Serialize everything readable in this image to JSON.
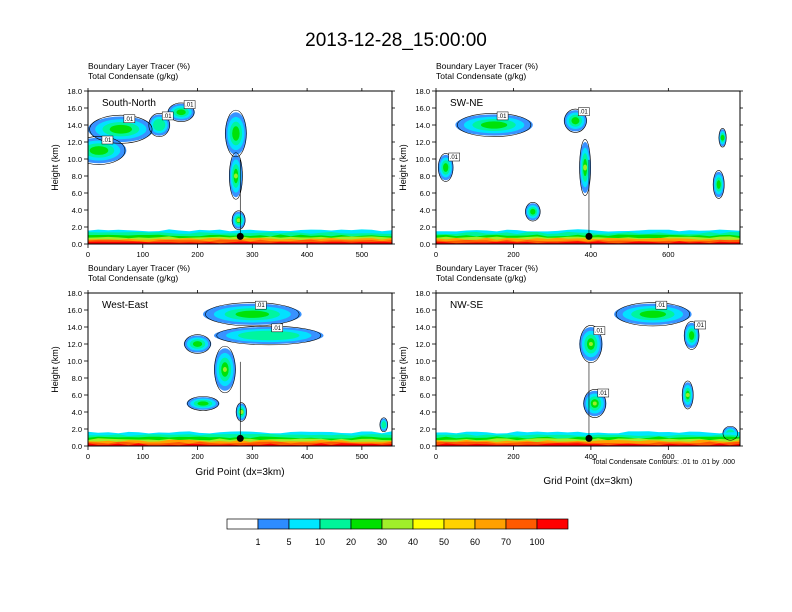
{
  "title": "2013-12-28_15:00:00",
  "colors": {
    "palette": [
      "#ffffff",
      "#2d8cff",
      "#00e6ff",
      "#00f59a",
      "#00e000",
      "#a0ee2a",
      "#ffff00",
      "#ffd200",
      "#ffa000",
      "#ff5a00",
      "#ff0000"
    ],
    "contour": "#000000",
    "frame": "#000000"
  },
  "footnote": "Total Condensate Contours: .01 to .01 by .000",
  "chart_data": [
    {
      "type": "heatmap",
      "panel_label": "South-North",
      "title_lines": [
        "Boundary Layer Tracer   (%)",
        "Total Condensate   (g/kg)"
      ],
      "ylabel": "Height (km)",
      "xlabel": "",
      "xlim": [
        0,
        555
      ],
      "ylim": [
        0,
        18
      ],
      "xticks": [
        0,
        100,
        200,
        300,
        400,
        500
      ],
      "yticks": [
        "0.0",
        "2.0",
        "4.0",
        "6.0",
        "8.0",
        "10.0",
        "12.0",
        "14.0",
        "16.0",
        "18.0"
      ],
      "contour_labels": [
        ".01",
        ".01",
        ".01",
        ".01"
      ],
      "blobs": [
        [
          20,
          11,
          100,
          3,
          3
        ],
        [
          60,
          13.5,
          120,
          3,
          3
        ],
        [
          130,
          14,
          40,
          2.5,
          2
        ],
        [
          170,
          15.5,
          50,
          2,
          3
        ],
        [
          270,
          13,
          40,
          5,
          3
        ],
        [
          270,
          8,
          25,
          5,
          4
        ],
        [
          275,
          2.8,
          25,
          2,
          4
        ]
      ],
      "station": [
        278,
        0.9
      ]
    },
    {
      "type": "heatmap",
      "panel_label": "SW-NE",
      "title_lines": [
        "Boundary Layer Tracer   (%)",
        "Total Condensate   (g/kg)"
      ],
      "ylabel": "Height (km)",
      "xlabel": "",
      "xlim": [
        0,
        785
      ],
      "ylim": [
        0,
        18
      ],
      "xticks": [
        0,
        200,
        400,
        600
      ],
      "yticks": [
        "0.0",
        "2.0",
        "4.0",
        "6.0",
        "8.0",
        "10.0",
        "12.0",
        "14.0",
        "16.0",
        "18.0"
      ],
      "contour_labels": [
        ".01",
        ".01",
        ".01"
      ],
      "blobs": [
        [
          25,
          9,
          40,
          3,
          3
        ],
        [
          150,
          14,
          200,
          2.5,
          3
        ],
        [
          360,
          14.5,
          60,
          2.5,
          3
        ],
        [
          385,
          9,
          30,
          6,
          4
        ],
        [
          250,
          3.8,
          40,
          2,
          3
        ],
        [
          730,
          7,
          30,
          3,
          3
        ],
        [
          740,
          12.5,
          20,
          2,
          3
        ]
      ],
      "station": [
        395,
        0.9
      ]
    },
    {
      "type": "heatmap",
      "panel_label": "West-East",
      "title_lines": [
        "Boundary Layer Tracer   (%)",
        "Total Condensate   (g/kg)"
      ],
      "ylabel": "Height (km)",
      "xlabel": "Grid Point (dx=3km)",
      "xlim": [
        0,
        555
      ],
      "ylim": [
        0,
        18
      ],
      "xticks": [
        0,
        100,
        200,
        300,
        400,
        500
      ],
      "yticks": [
        "0.0",
        "2.0",
        "4.0",
        "6.0",
        "8.0",
        "10.0",
        "12.0",
        "14.0",
        "16.0",
        "18.0"
      ],
      "contour_labels": [
        ".01",
        ".01"
      ],
      "blobs": [
        [
          300,
          15.5,
          180,
          2.5,
          3
        ],
        [
          330,
          13,
          200,
          2,
          2
        ],
        [
          250,
          9,
          40,
          5,
          4
        ],
        [
          280,
          4,
          20,
          2,
          4
        ],
        [
          210,
          5,
          60,
          1.5,
          3
        ],
        [
          200,
          12,
          50,
          2,
          3
        ],
        [
          540,
          2.5,
          15,
          1.5,
          2
        ]
      ],
      "station": [
        278,
        0.9
      ]
    },
    {
      "type": "heatmap",
      "panel_label": "NW-SE",
      "title_lines": [
        "Boundary Layer Tracer   (%)",
        "Total Condensate   (g/kg)"
      ],
      "ylabel": "Height (km)",
      "xlabel": "Grid Point (dx=3km)",
      "xlim": [
        0,
        785
      ],
      "ylim": [
        0,
        18
      ],
      "xticks": [
        0,
        200,
        400,
        600
      ],
      "yticks": [
        "0.0",
        "2.0",
        "4.0",
        "6.0",
        "8.0",
        "10.0",
        "12.0",
        "14.0",
        "16.0",
        "18.0"
      ],
      "contour_labels": [
        ".01",
        ".01",
        ".01",
        ".01"
      ],
      "blobs": [
        [
          400,
          12,
          60,
          4,
          4
        ],
        [
          410,
          5,
          60,
          3,
          4
        ],
        [
          560,
          15.5,
          200,
          2.5,
          3
        ],
        [
          660,
          13,
          40,
          3,
          3
        ],
        [
          650,
          6,
          30,
          3,
          4
        ],
        [
          760,
          1.5,
          40,
          1.5,
          2
        ]
      ],
      "station": [
        395,
        0.9
      ]
    }
  ],
  "colorbar": {
    "labels": [
      "1",
      "5",
      "10",
      "20",
      "30",
      "40",
      "50",
      "60",
      "70",
      "100"
    ]
  }
}
